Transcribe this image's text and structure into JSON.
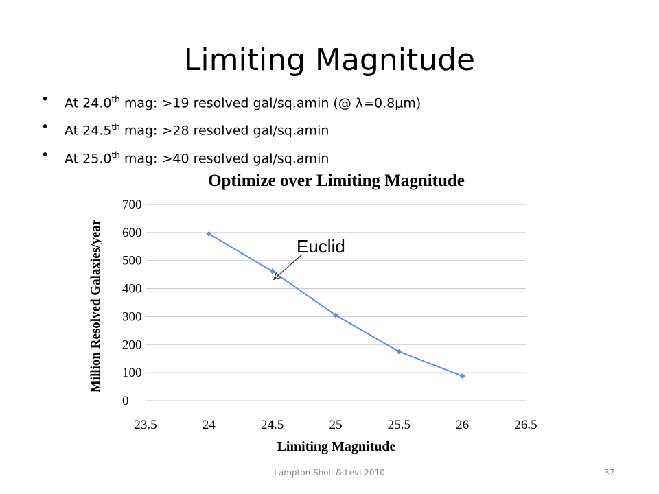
{
  "slide": {
    "title": "Limiting Magnitude",
    "bullets": [
      {
        "pre": "At 24.0",
        "sup": "th",
        "post": " mag: >19 resolved gal/sq.amin (@ λ=0.8μm)"
      },
      {
        "pre": "At 24.5",
        "sup": "th",
        "post": " mag: >28 resolved gal/sq.amin"
      },
      {
        "pre": "At 25.0",
        "sup": "th",
        "post": " mag: >40 resolved gal/sq.amin"
      }
    ],
    "footer": "Lampton Sholl & Levi 2010",
    "page_number": "37"
  },
  "chart_data": {
    "type": "line",
    "title": "Optimize over Limiting Magnitude",
    "xlabel": "Limiting Magnitude",
    "ylabel": "Million Resolved Galaxies/year",
    "x_ticks": [
      "23.5",
      "24",
      "24.5",
      "25",
      "25.5",
      "26",
      "26.5"
    ],
    "y_ticks": [
      "0",
      "100",
      "200",
      "300",
      "400",
      "500",
      "600",
      "700"
    ],
    "xlim": [
      23.5,
      26.5
    ],
    "ylim": [
      0,
      700
    ],
    "grid": true,
    "series": [
      {
        "x": [
          24,
          24.5,
          25,
          25.5,
          26
        ],
        "y": [
          595,
          462,
          305,
          175,
          88
        ],
        "color": "#5b8fe6"
      }
    ],
    "annotations": [
      {
        "text": "Euclid",
        "x": 24.5,
        "y": 462
      }
    ]
  }
}
